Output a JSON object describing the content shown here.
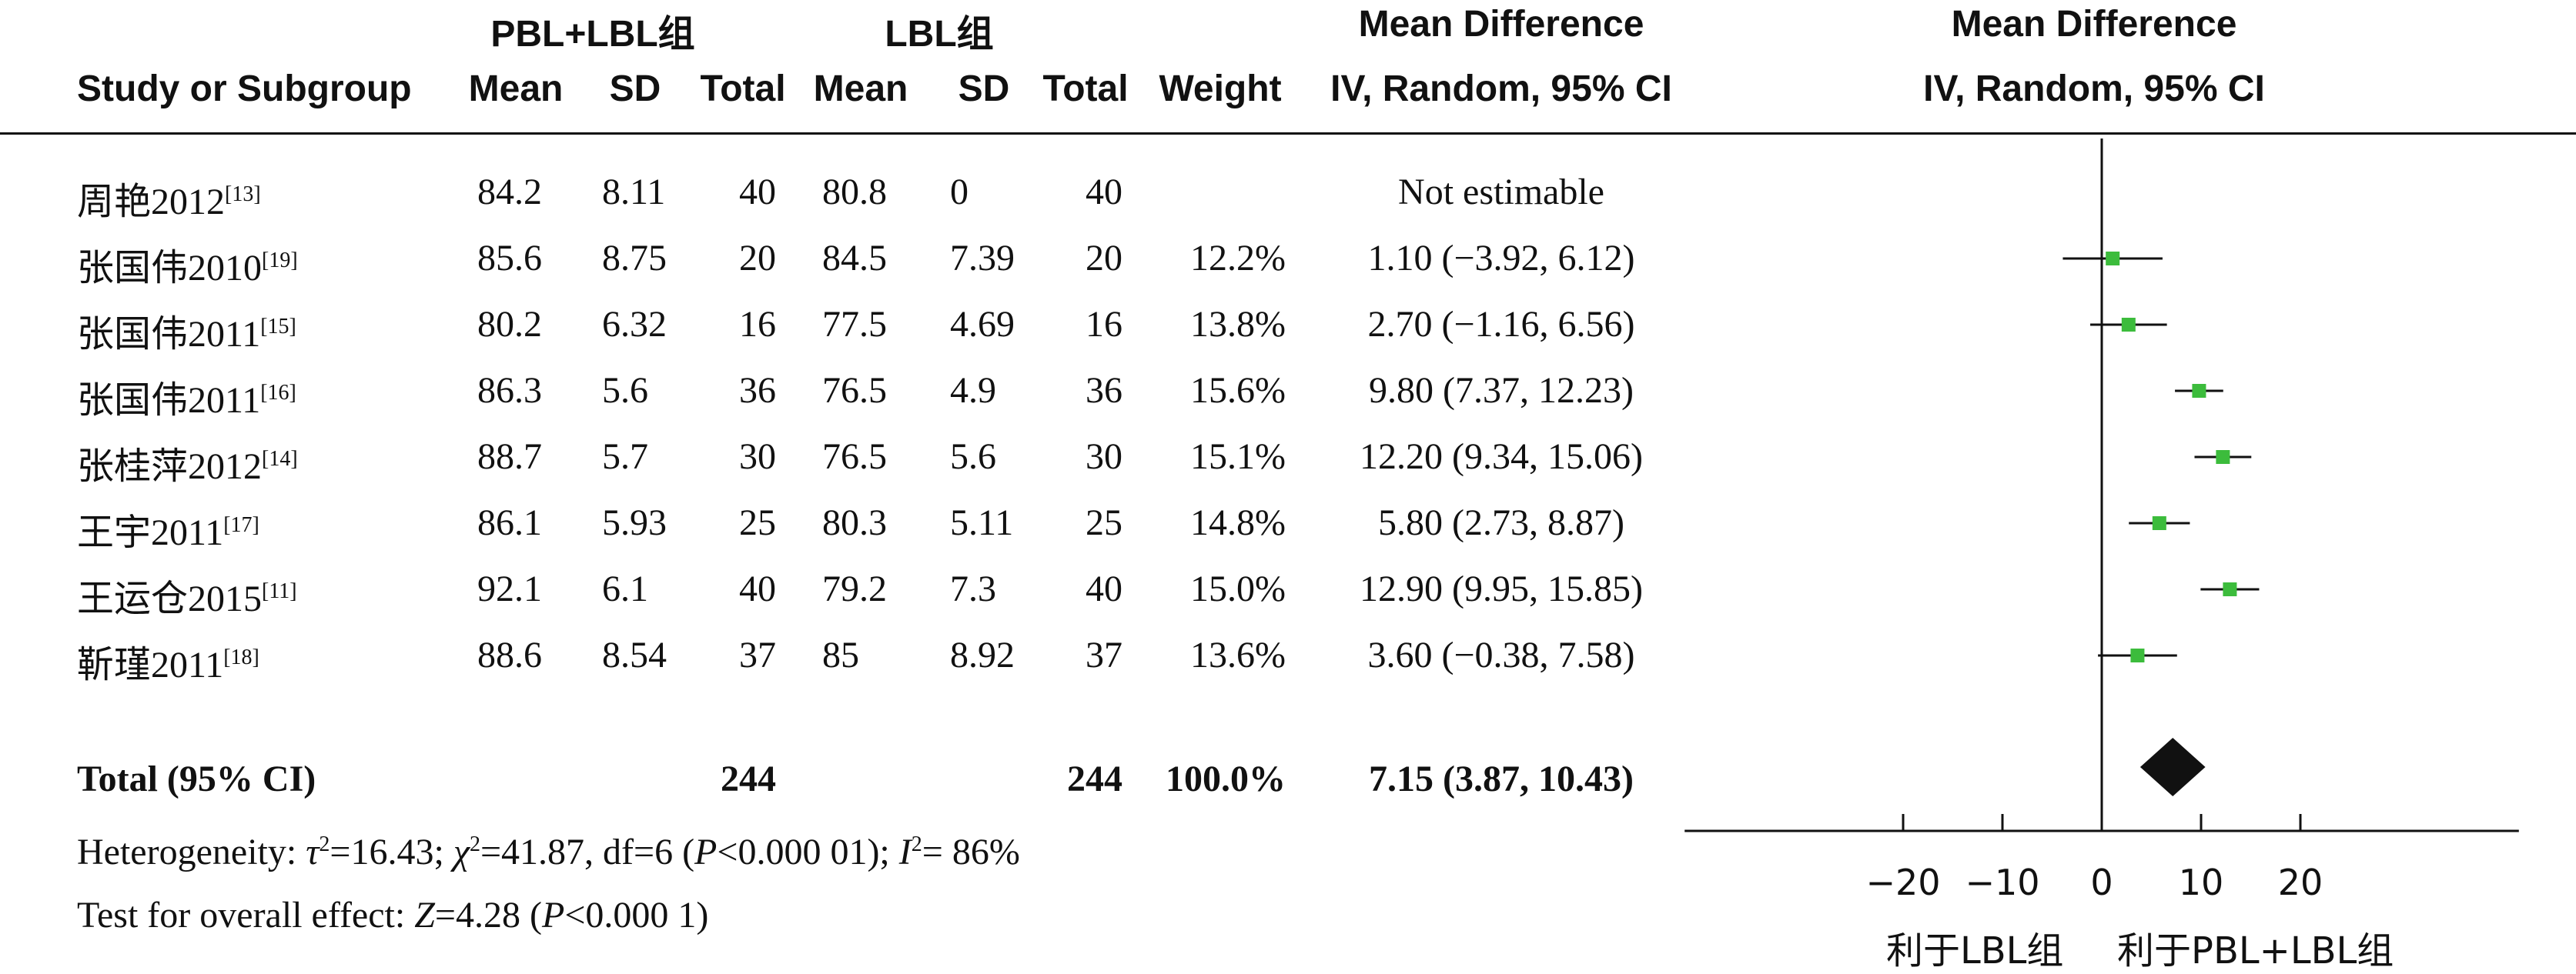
{
  "header": {
    "exp_group": "PBL+LBL组",
    "ctrl_group": "LBL组",
    "md_title": "Mean Difference",
    "md_sub": "IV, Random, 95% CI",
    "plot_title": "Mean Difference",
    "plot_sub": "IV, Random, 95% CI",
    "col_study": "Study or Subgroup",
    "col_mean": "Mean",
    "col_sd": "SD",
    "col_total": "Total",
    "col_weight": "Weight"
  },
  "studies": [
    {
      "name": "周艳2012",
      "ref": "[13]",
      "exp_mean": "84.2",
      "exp_sd": "8.11",
      "exp_total": "40",
      "ctrl_mean": "80.8",
      "ctrl_sd": "0",
      "ctrl_total": "40",
      "weight": "",
      "ci_text": "Not estimable"
    },
    {
      "name": "张国伟2010",
      "ref": "[19]",
      "exp_mean": "85.6",
      "exp_sd": "8.75",
      "exp_total": "20",
      "ctrl_mean": "84.5",
      "ctrl_sd": "7.39",
      "ctrl_total": "20",
      "weight": "12.2%",
      "ci_text": "1.10 (−3.92, 6.12)"
    },
    {
      "name": "张国伟2011",
      "ref": "[15]",
      "exp_mean": "80.2",
      "exp_sd": "6.32",
      "exp_total": "16",
      "ctrl_mean": "77.5",
      "ctrl_sd": "4.69",
      "ctrl_total": "16",
      "weight": "13.8%",
      "ci_text": "2.70 (−1.16, 6.56)"
    },
    {
      "name": "张国伟2011",
      "ref": "[16]",
      "exp_mean": "86.3",
      "exp_sd": "5.6",
      "exp_total": "36",
      "ctrl_mean": "76.5",
      "ctrl_sd": "4.9",
      "ctrl_total": "36",
      "weight": "15.6%",
      "ci_text": "9.80 (7.37, 12.23)"
    },
    {
      "name": "张桂萍2012",
      "ref": "[14]",
      "exp_mean": "88.7",
      "exp_sd": "5.7",
      "exp_total": "30",
      "ctrl_mean": "76.5",
      "ctrl_sd": "5.6",
      "ctrl_total": "30",
      "weight": "15.1%",
      "ci_text": "12.20 (9.34, 15.06)"
    },
    {
      "name": "王宇2011",
      "ref": "[17]",
      "exp_mean": "86.1",
      "exp_sd": "5.93",
      "exp_total": "25",
      "ctrl_mean": "80.3",
      "ctrl_sd": "5.11",
      "ctrl_total": "25",
      "weight": "14.8%",
      "ci_text": "5.80 (2.73, 8.87)"
    },
    {
      "name": "王运仓2015",
      "ref": "[11]",
      "exp_mean": "92.1",
      "exp_sd": "6.1",
      "exp_total": "40",
      "ctrl_mean": "79.2",
      "ctrl_sd": "7.3",
      "ctrl_total": "40",
      "weight": "15.0%",
      "ci_text": "12.90 (9.95, 15.85)"
    },
    {
      "name": "靳瑾2011",
      "ref": "[18]",
      "exp_mean": "88.6",
      "exp_sd": "8.54",
      "exp_total": "37",
      "ctrl_mean": "85",
      "ctrl_sd": "8.92",
      "ctrl_total": "37",
      "weight": "13.6%",
      "ci_text": "3.60 (−0.38, 7.58)"
    }
  ],
  "total": {
    "label": "Total (95% CI)",
    "exp_total": "244",
    "ctrl_total": "244",
    "weight": "100.0%",
    "ci_text": "7.15 (3.87, 10.43)"
  },
  "heterogeneity": {
    "prefix": "Heterogeneity: ",
    "tau_sym": "τ",
    "tau_val": "=16.43; ",
    "chi_sym": "χ",
    "chi_val": "=41.87, df=6 (",
    "p_sym": "P",
    "p_val": "<0.000 01); ",
    "i_sym": "I",
    "i_val": "= 86%",
    "sq": "2"
  },
  "overall": {
    "prefix": "Test for overall effect: ",
    "z_sym": "Z",
    "z_val": "=4.28 (",
    "p_sym": "P",
    "p_val": "<0.000 1)"
  },
  "axis": {
    "favours_left": "利于LBL组",
    "favours_right": "利于PBL+LBL组"
  },
  "colors": {
    "marker": "#3cbc3c",
    "diamond": "#111111",
    "line": "#111111"
  },
  "chart_data": {
    "type": "forest",
    "x_ticks": [
      -20,
      -10,
      0,
      10,
      20
    ],
    "xlim": [
      -42,
      42
    ],
    "null_line": 0,
    "points": [
      {
        "est": 1.1,
        "lo": -3.92,
        "hi": 6.12
      },
      {
        "est": 2.7,
        "lo": -1.16,
        "hi": 6.56
      },
      {
        "est": 9.8,
        "lo": 7.37,
        "hi": 12.23
      },
      {
        "est": 12.2,
        "lo": 9.34,
        "hi": 15.06
      },
      {
        "est": 5.8,
        "lo": 2.73,
        "hi": 8.87
      },
      {
        "est": 12.9,
        "lo": 9.95,
        "hi": 15.85
      },
      {
        "est": 3.6,
        "lo": -0.38,
        "hi": 7.58
      }
    ],
    "pooled": {
      "est": 7.15,
      "lo": 3.87,
      "hi": 10.43
    }
  }
}
